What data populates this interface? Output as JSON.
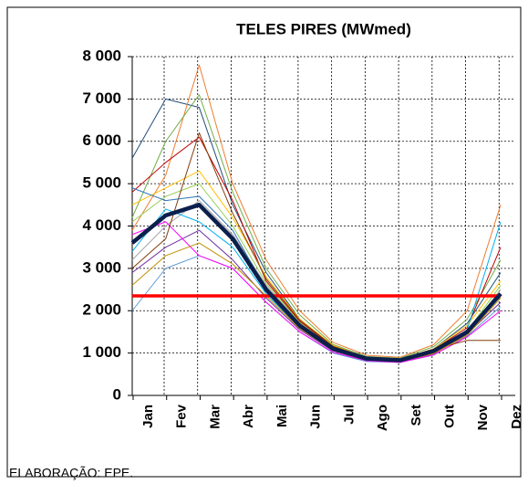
{
  "chart_data": {
    "type": "line",
    "title": "TELES PIRES (MWmed)",
    "footer": "ELABORAÇÃO: EPE.",
    "categories": [
      "Jan",
      "Fev",
      "Mar",
      "Abr",
      "Mai",
      "Jun",
      "Jul",
      "Ago",
      "Set",
      "Out",
      "Nov",
      "Dez"
    ],
    "ylim": [
      0,
      8000
    ],
    "yticks": [
      {
        "value": 0,
        "label": "0"
      },
      {
        "value": 1000,
        "label": "1 000"
      },
      {
        "value": 2000,
        "label": "2 000"
      },
      {
        "value": 3000,
        "label": "3 000"
      },
      {
        "value": 4000,
        "label": "4 000"
      },
      {
        "value": 5000,
        "label": "5 000"
      },
      {
        "value": 6000,
        "label": "6 000"
      },
      {
        "value": 7000,
        "label": "7 000"
      },
      {
        "value": 8000,
        "label": "8 000"
      }
    ],
    "grid": true,
    "series": [
      {
        "color": "#1f4e79",
        "line_width": 1,
        "values": [
          5600,
          7000,
          6800,
          4500,
          2900,
          1800,
          1150,
          900,
          850,
          1100,
          1700,
          2900
        ]
      },
      {
        "color": "#ed7d31",
        "line_width": 1,
        "values": [
          3900,
          5200,
          7800,
          5000,
          3200,
          2000,
          1250,
          950,
          900,
          1200,
          2000,
          4500
        ]
      },
      {
        "color": "#70ad47",
        "line_width": 1,
        "values": [
          4200,
          6000,
          7100,
          4800,
          3000,
          1900,
          1200,
          920,
          880,
          1150,
          1800,
          3200
        ]
      },
      {
        "color": "#5b9bd5",
        "line_width": 1,
        "values": [
          2000,
          3000,
          3300,
          3000,
          2200,
          1500,
          1000,
          800,
          780,
          950,
          1400,
          2100
        ]
      },
      {
        "color": "#a5a5a5",
        "line_width": 1,
        "values": [
          3200,
          4000,
          4600,
          3800,
          2600,
          1700,
          1100,
          860,
          820,
          1020,
          1500,
          2500
        ]
      },
      {
        "color": "#c00000",
        "line_width": 1,
        "values": [
          4800,
          5500,
          6100,
          4600,
          2700,
          1750,
          1150,
          880,
          840,
          1080,
          1600,
          3500
        ]
      },
      {
        "color": "#7030a0",
        "line_width": 1,
        "values": [
          2900,
          3500,
          3900,
          3200,
          2300,
          1550,
          1050,
          830,
          790,
          980,
          1450,
          2200
        ]
      },
      {
        "color": "#ffc000",
        "line_width": 1,
        "values": [
          4500,
          4900,
          5300,
          4200,
          2800,
          1800,
          1180,
          890,
          860,
          1100,
          1650,
          2700
        ]
      },
      {
        "color": "#00b0f0",
        "line_width": 1,
        "values": [
          3400,
          4400,
          4100,
          3500,
          2400,
          1600,
          1080,
          850,
          810,
          1000,
          1550,
          4100
        ]
      },
      {
        "color": "#ff00ff",
        "line_width": 1,
        "values": [
          3800,
          4100,
          3300,
          3000,
          2200,
          1500,
          1020,
          820,
          780,
          960,
          1380,
          2000
        ]
      },
      {
        "color": "#92d050",
        "line_width": 1,
        "values": [
          4100,
          4700,
          5000,
          4000,
          2650,
          1720,
          1120,
          870,
          830,
          1060,
          1520,
          2600
        ]
      },
      {
        "color": "#833c0b",
        "line_width": 1,
        "values": [
          3000,
          3700,
          6200,
          4300,
          2750,
          1780,
          1160,
          900,
          850,
          1090,
          1300,
          1300
        ]
      },
      {
        "color": "#2e75b6",
        "line_width": 1,
        "values": [
          4900,
          4600,
          4700,
          3900,
          2500,
          1650,
          1090,
          860,
          820,
          1030,
          1480,
          2400
        ]
      },
      {
        "color": "#bf9000",
        "line_width": 1,
        "values": [
          2600,
          3300,
          3600,
          3100,
          2350,
          1580,
          1060,
          840,
          800,
          990,
          1420,
          2300
        ]
      },
      {
        "color": "#ff0000",
        "line_width": 3.5,
        "values": [
          2350,
          2350,
          2350,
          2350,
          2350,
          2350,
          2350,
          2350,
          2350,
          2350,
          2350,
          2350
        ]
      },
      {
        "color": "#0b1f4d",
        "line_width": 4.5,
        "values": [
          3600,
          4250,
          4500,
          3700,
          2500,
          1650,
          1100,
          870,
          830,
          1050,
          1500,
          2400
        ]
      }
    ]
  }
}
